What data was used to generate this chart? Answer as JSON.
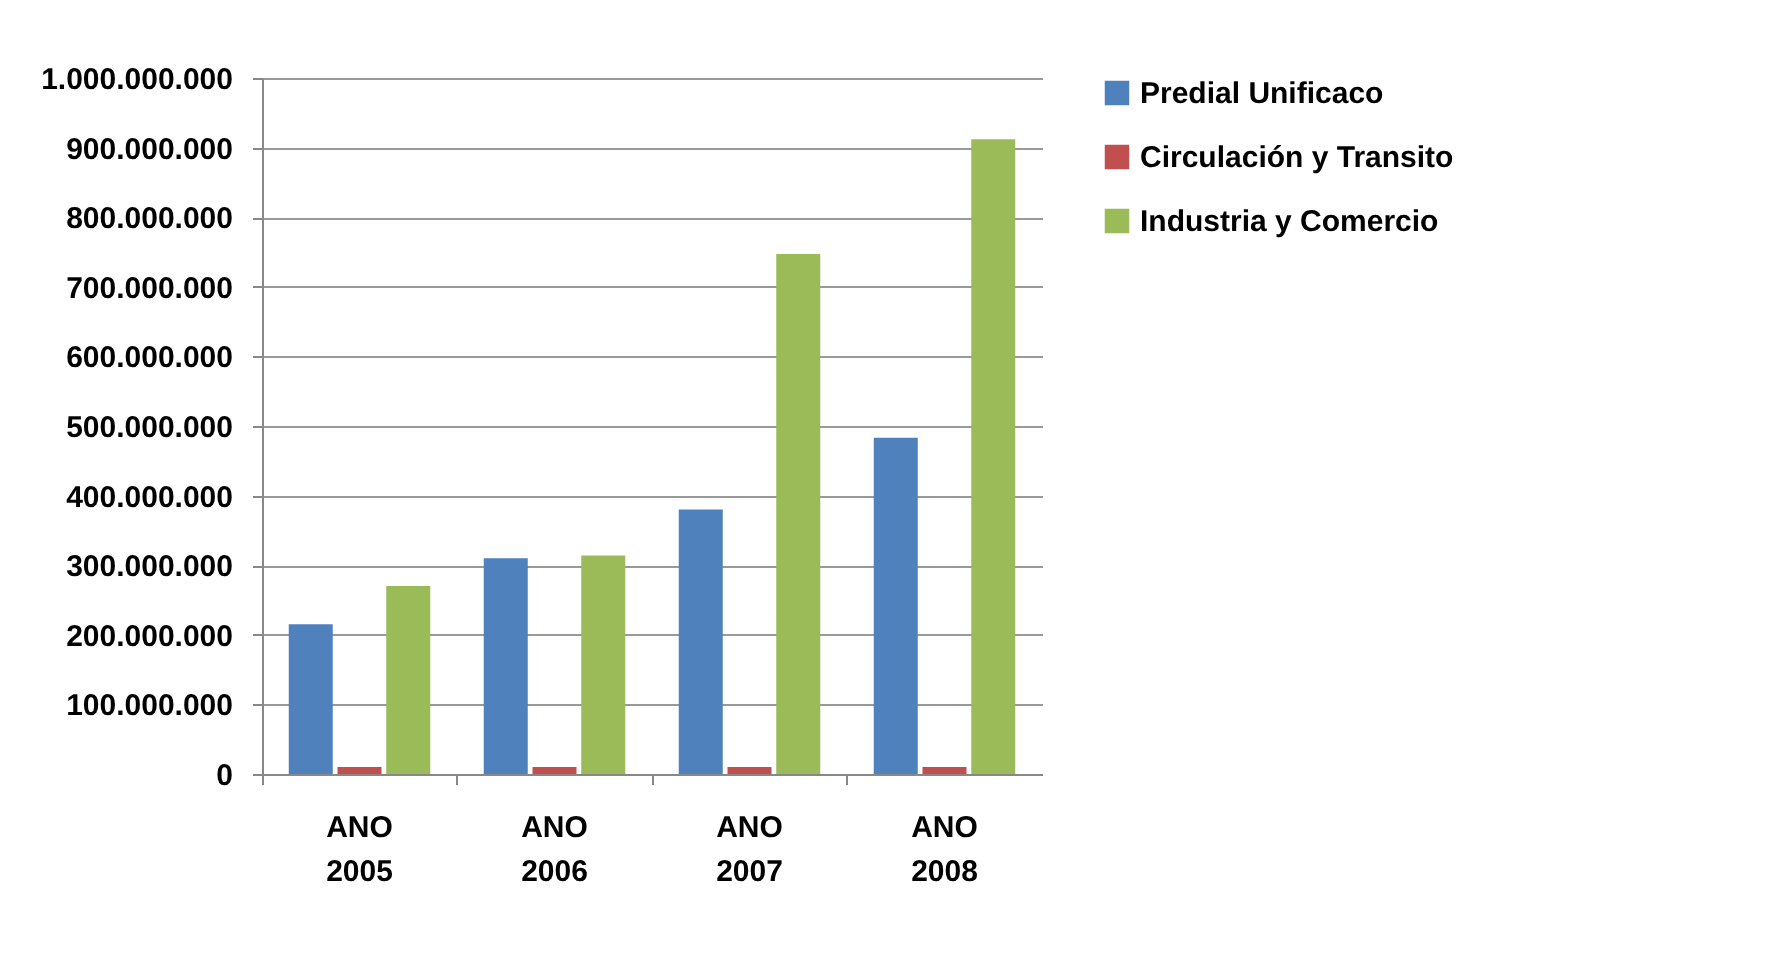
{
  "chart_data": {
    "type": "bar",
    "categories": [
      "ANO 2005",
      "ANO 2006",
      "ANO 2007",
      "ANO 2008"
    ],
    "series": [
      {
        "name": "Predial  Unificaco",
        "color": "#4f81bd",
        "values": [
          215000000,
          310000000,
          380000000,
          483000000
        ]
      },
      {
        "name": "Circulación y Transito",
        "color": "#c0504d",
        "values": [
          10000000,
          10000000,
          10000000,
          10000000
        ]
      },
      {
        "name": "Industria y  Comercio",
        "color": "#9bbb59",
        "values": [
          270000000,
          314000000,
          747000000,
          912000000
        ]
      }
    ],
    "ylim": [
      0,
      1000000000
    ],
    "yticks": [
      {
        "value": 0,
        "label": "0"
      },
      {
        "value": 100000000,
        "label": "100.000.000"
      },
      {
        "value": 200000000,
        "label": "200.000.000"
      },
      {
        "value": 300000000,
        "label": "300.000.000"
      },
      {
        "value": 400000000,
        "label": "400.000.000"
      },
      {
        "value": 500000000,
        "label": "500.000.000"
      },
      {
        "value": 600000000,
        "label": "600.000.000"
      },
      {
        "value": 700000000,
        "label": "700.000.000"
      },
      {
        "value": 800000000,
        "label": "800.000.000"
      },
      {
        "value": 900000000,
        "label": "900.000.000"
      },
      {
        "value": 1000000000,
        "label": "1.000.000.000"
      }
    ],
    "grid": "y",
    "legend": "right"
  }
}
